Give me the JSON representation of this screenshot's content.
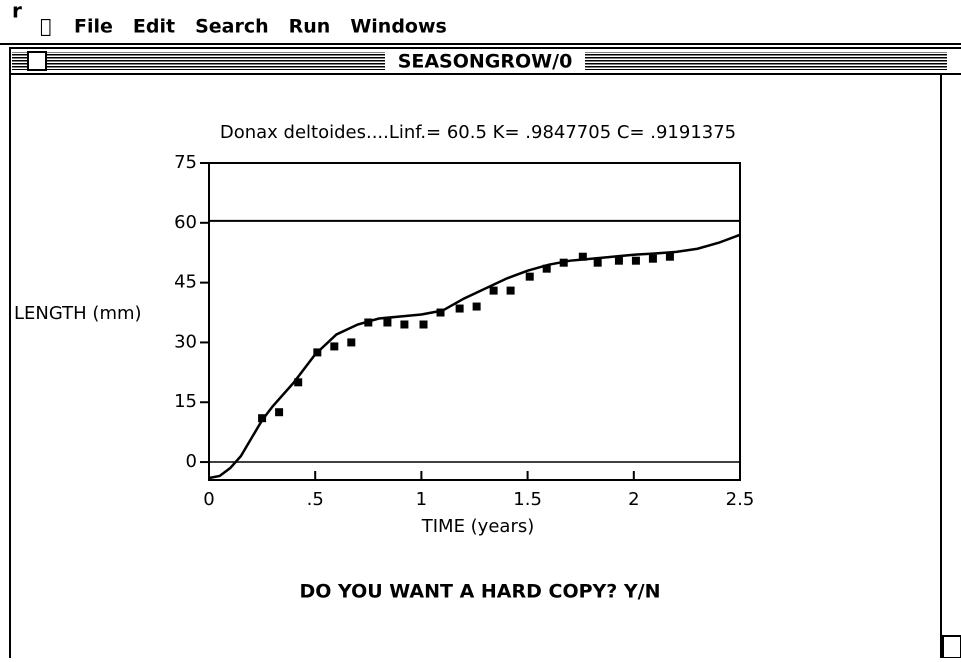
{
  "menu": {
    "items": [
      "File",
      "Edit",
      "Search",
      "Run",
      "Windows"
    ]
  },
  "window": {
    "title": "SEASONGROW/0"
  },
  "chart_data": {
    "type": "scatter",
    "title": "Donax deltoides....Linf.= 60.5   K= .9847705   C= .9191375",
    "xlabel": "TIME (years)",
    "ylabel": "LENGTH (mm)",
    "xlim": [
      0,
      2.5
    ],
    "ylim": [
      -4.5,
      75
    ],
    "xticks": [
      0,
      {
        "value": 0.5,
        "label": ".5"
      },
      1,
      1.5,
      2,
      2.5
    ],
    "yticks": [
      0,
      15,
      30,
      45,
      60,
      75
    ],
    "hline": 60.5,
    "color": "#000000",
    "series": [
      {
        "type": "line",
        "x": [
          0,
          0.05,
          0.1,
          0.15,
          0.2,
          0.25,
          0.3,
          0.4,
          0.5,
          0.6,
          0.7,
          0.8,
          0.9,
          1.0,
          1.1,
          1.2,
          1.3,
          1.4,
          1.5,
          1.6,
          1.7,
          1.8,
          1.9,
          2.0,
          2.1,
          2.2,
          2.3,
          2.4,
          2.5
        ],
        "values": [
          -4,
          -3.5,
          -1.5,
          1.5,
          6,
          10.5,
          14,
          20,
          27,
          32,
          34.5,
          36,
          36.5,
          37,
          38,
          41,
          43.5,
          46,
          48,
          49.5,
          50.5,
          51,
          51.5,
          52,
          52.3,
          52.7,
          53.5,
          55,
          57
        ]
      },
      {
        "type": "scatter",
        "x": [
          0.25,
          0.33,
          0.42,
          0.51,
          0.59,
          0.67,
          0.75,
          0.84,
          0.92,
          1.01,
          1.09,
          1.18,
          1.26,
          1.34,
          1.42,
          1.51,
          1.59,
          1.67,
          1.76,
          1.83,
          1.93,
          2.01,
          2.09,
          2.17
        ],
        "values": [
          11,
          12.5,
          20,
          27.5,
          29,
          30,
          35,
          35,
          34.5,
          34.5,
          37.5,
          38.5,
          39,
          43,
          43,
          46.5,
          48.5,
          50,
          51.5,
          50,
          50.5,
          50.5,
          51,
          51.5
        ]
      }
    ]
  },
  "prompt": "DO YOU WANT A HARD COPY? Y/N"
}
